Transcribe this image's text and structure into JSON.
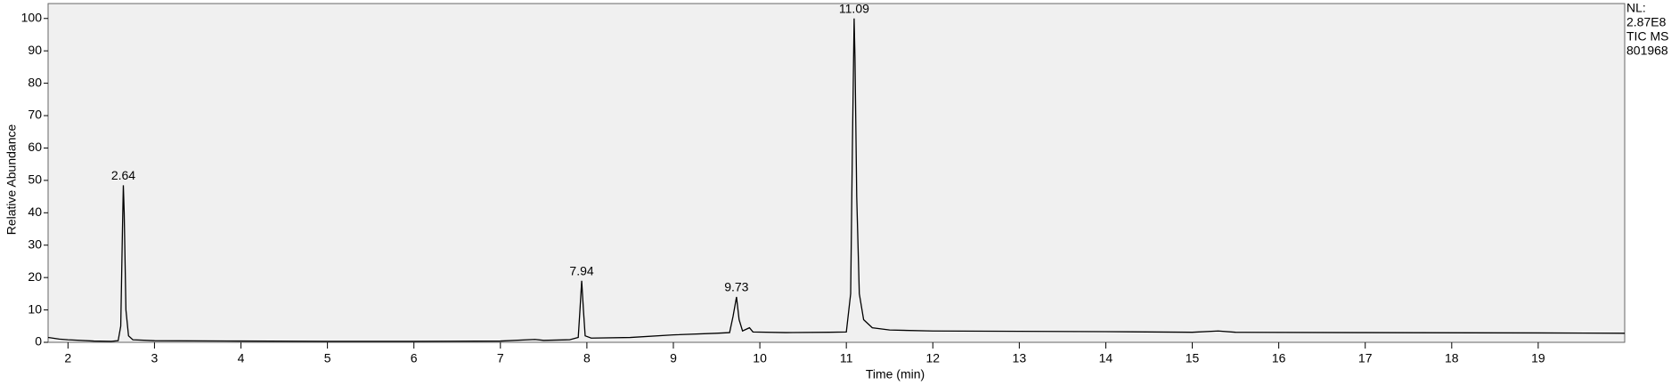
{
  "chart_data": {
    "type": "line",
    "xlabel": "Time (min)",
    "ylabel": "Relative Abundance",
    "x": [
      1.77,
      1.9,
      2.0,
      2.3,
      2.5,
      2.58,
      2.61,
      2.63,
      2.64,
      2.65,
      2.67,
      2.7,
      2.75,
      3.0,
      4.0,
      5.0,
      6.0,
      7.0,
      7.4,
      7.5,
      7.8,
      7.9,
      7.92,
      7.94,
      7.96,
      7.98,
      8.05,
      8.5,
      9.0,
      9.5,
      9.65,
      9.69,
      9.73,
      9.76,
      9.8,
      9.88,
      9.92,
      10.3,
      10.8,
      11.0,
      11.05,
      11.07,
      11.09,
      11.1,
      11.12,
      11.15,
      11.2,
      11.3,
      11.5,
      12.0,
      13.0,
      14.0,
      15.0,
      15.3,
      15.5,
      17.0,
      19.0,
      20.0
    ],
    "series": [
      {
        "color": "#000000",
        "values": [
          1.5,
          1.0,
          0.8,
          0.4,
          0.3,
          0.5,
          5,
          35,
          48.5,
          40,
          10,
          2,
          0.8,
          0.5,
          0.4,
          0.3,
          0.3,
          0.4,
          0.9,
          0.6,
          0.8,
          1.5,
          10,
          19,
          10,
          2,
          1.3,
          1.5,
          2.3,
          2.8,
          3,
          8,
          14,
          7,
          3.5,
          4.5,
          3.2,
          3.0,
          3.1,
          3.2,
          15,
          60,
          100,
          88,
          45,
          15,
          7,
          4.5,
          3.8,
          3.5,
          3.4,
          3.3,
          3.1,
          3.5,
          3.1,
          3.0,
          2.9,
          2.8
        ]
      }
    ],
    "annotations": [
      {
        "x": 2.64,
        "y": 48.5
      },
      {
        "x": 7.94,
        "y": 19
      },
      {
        "x": 9.73,
        "y": 14
      },
      {
        "x": 11.09,
        "y": 100
      }
    ],
    "info": [
      "NL:",
      "2.87E8",
      "TIC  MS",
      "801968"
    ],
    "xlim": [
      1.77,
      20.0
    ],
    "ylim": [
      0,
      104.6
    ],
    "xticks": [
      2,
      3,
      4,
      5,
      6,
      7,
      8,
      9,
      10,
      11,
      12,
      13,
      14,
      15,
      16,
      17,
      18,
      19
    ],
    "yticks": [
      0,
      10,
      20,
      30,
      40,
      50,
      60,
      70,
      80,
      90,
      100
    ],
    "background": "#f0f0f0"
  }
}
